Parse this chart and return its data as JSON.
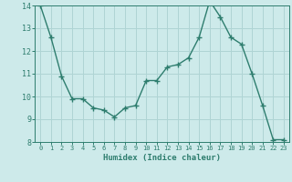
{
  "x": [
    0,
    1,
    2,
    3,
    4,
    5,
    6,
    7,
    8,
    9,
    10,
    11,
    12,
    13,
    14,
    15,
    16,
    17,
    18,
    19,
    20,
    21,
    22,
    23
  ],
  "y": [
    14.0,
    12.6,
    10.9,
    9.9,
    9.9,
    9.5,
    9.4,
    9.1,
    9.5,
    9.6,
    10.7,
    10.7,
    11.3,
    11.4,
    11.7,
    12.6,
    14.2,
    13.5,
    12.6,
    12.3,
    11.0,
    9.6,
    8.1,
    8.1
  ],
  "xlabel": "Humidex (Indice chaleur)",
  "ylim": [
    8,
    14
  ],
  "yticks": [
    8,
    9,
    10,
    11,
    12,
    13,
    14
  ],
  "xlim": [
    -0.5,
    23.5
  ],
  "xticks": [
    0,
    1,
    2,
    3,
    4,
    5,
    6,
    7,
    8,
    9,
    10,
    11,
    12,
    13,
    14,
    15,
    16,
    17,
    18,
    19,
    20,
    21,
    22,
    23
  ],
  "line_color": "#2e7d6e",
  "marker_color": "#2e7d6e",
  "bg_color": "#cdeaea",
  "grid_color": "#afd4d4",
  "axis_color": "#2e7d6e",
  "tick_color": "#2e7d6e",
  "label_color": "#2e7d6e"
}
